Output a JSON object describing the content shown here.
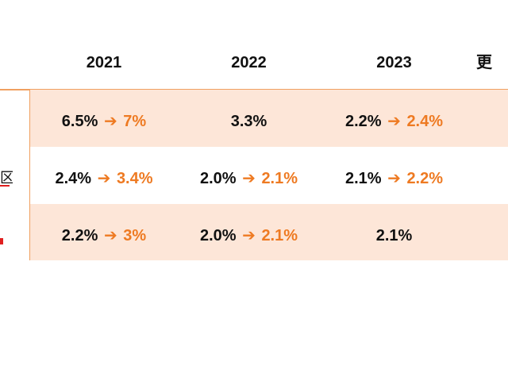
{
  "headers": [
    "2021",
    "2022",
    "2023",
    "更"
  ],
  "row_labels": [
    "",
    "区",
    ""
  ],
  "rows": [
    {
      "cells": [
        {
          "from": "6.5%",
          "to": "7%"
        },
        {
          "from": "3.3%",
          "to": ""
        },
        {
          "from": "2.2%",
          "to": "2.4%"
        }
      ]
    },
    {
      "cells": [
        {
          "from": "2.4%",
          "to": "3.4%"
        },
        {
          "from": "2.0%",
          "to": "2.1%"
        },
        {
          "from": "2.1%",
          "to": "2.2%"
        }
      ]
    },
    {
      "cells": [
        {
          "from": "2.2%",
          "to": "3%"
        },
        {
          "from": "2.0%",
          "to": "2.1%"
        },
        {
          "from": "2.1%",
          "to": ""
        }
      ]
    }
  ],
  "icons": {
    "arrow": "right-arrow-icon"
  },
  "colors": {
    "accent": "#ee7a22",
    "shade": "#fde6d8",
    "border": "#f0a060"
  }
}
